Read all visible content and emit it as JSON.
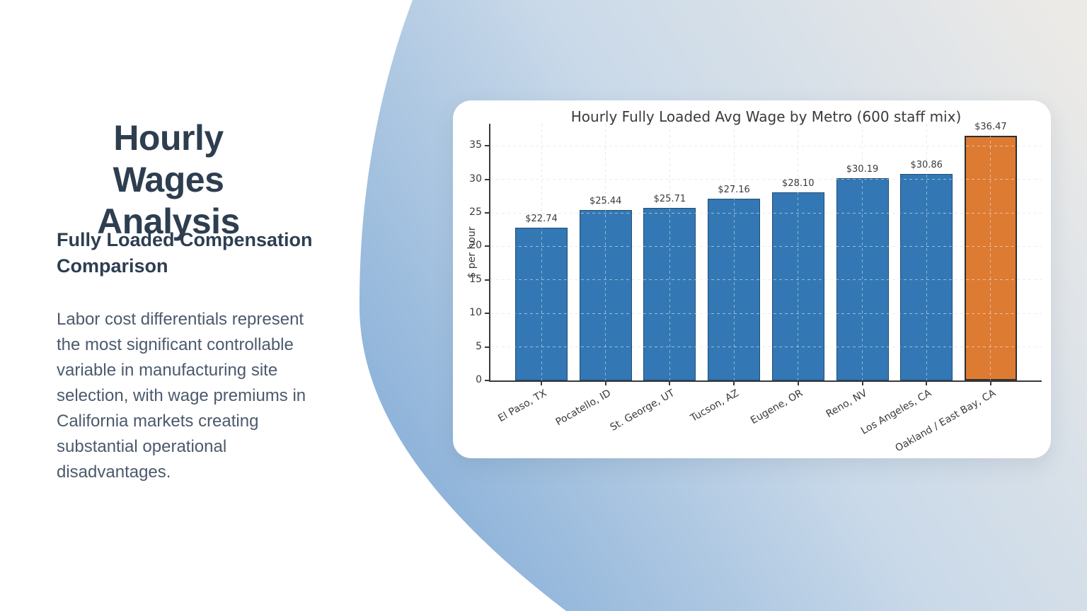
{
  "slide": {
    "title_line1": "Hourly Wages",
    "title_line2": "Analysis",
    "subtitle": "Fully Loaded Compensation Comparison",
    "body": "Labor cost differentials represent the most significant controllable variable in manufacturing site selection, with wage premiums in California markets creating substantial operational disadvantages."
  },
  "colors": {
    "heading": "#2d3e50",
    "body_text": "#4b5a6c",
    "bar_blue": "#3378b4",
    "bar_blue_edge": "rgba(15,40,65,0.55)",
    "bar_orange": "#dd7b33",
    "bar_orange_edge": "#2e2e2e",
    "axis": "#3a3a3a",
    "grid": "#d9d9d9",
    "card_bg": "#ffffff",
    "blob_deep": "#8fb4da",
    "blob_mid": "#c9d9e9",
    "blob_light": "#eceae7"
  },
  "chart_data": {
    "type": "bar",
    "title": "Hourly Fully Loaded Avg Wage by Metro (600 staff mix)",
    "categories": [
      "El Paso, TX",
      "Pocatello, ID",
      "St. George, UT",
      "Tucson, AZ",
      "Eugene, OR",
      "Reno, NV",
      "Los Angeles, CA",
      "Oakland / East Bay, CA"
    ],
    "values": [
      22.74,
      25.44,
      25.71,
      27.16,
      28.1,
      30.19,
      30.86,
      36.47
    ],
    "value_labels": [
      "$22.74",
      "$25.44",
      "$25.71",
      "$27.16",
      "$28.10",
      "$30.19",
      "$30.86",
      "$36.47"
    ],
    "highlight_index": 7,
    "xlabel": "",
    "ylabel": "$ per hour",
    "ylim": [
      0,
      38.3
    ],
    "yticks": [
      0,
      5,
      10,
      15,
      20,
      25,
      30,
      35
    ],
    "grid": "both, dashed, drawn over bars",
    "legend": null
  }
}
